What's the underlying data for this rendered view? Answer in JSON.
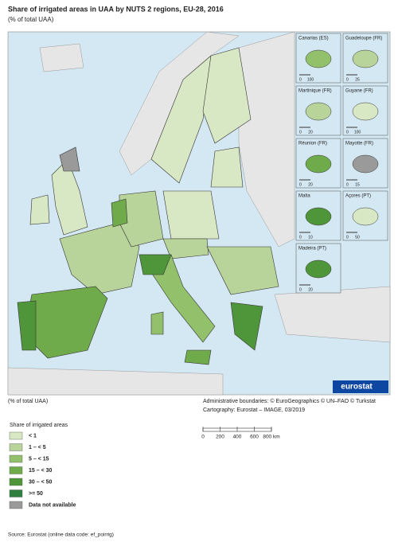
{
  "header": {
    "title": "Share of irrigated areas in UAA by NUTS 2 regions, EU-28, 2016",
    "subtitle": "(% of total UAA)"
  },
  "insets": [
    {
      "label": "Canarias (ES)",
      "scale": [
        "0",
        "100"
      ]
    },
    {
      "label": "Guadeloupe (FR)",
      "scale": [
        "0",
        "25"
      ]
    },
    {
      "label": "Martinique (FR)",
      "scale": [
        "0",
        "20"
      ]
    },
    {
      "label": "Guyane (FR)",
      "scale": [
        "0",
        "100"
      ]
    },
    {
      "label": "Réunion (FR)",
      "scale": [
        "0",
        "20"
      ]
    },
    {
      "label": "Mayotte (FR)",
      "scale": [
        "0",
        "15"
      ]
    },
    {
      "label": "Malta",
      "scale": [
        "0",
        "10"
      ]
    },
    {
      "label": "Açores (PT)",
      "scale": [
        "0",
        "50"
      ]
    },
    {
      "label": "Madeira (PT)",
      "scale": [
        "0",
        "20"
      ]
    }
  ],
  "logo": "eurostat",
  "notes": {
    "unit": "(% of total UAA)",
    "boundaries": "Administrative boundaries: © EuroGeographics © UN–FAO © Turkstat",
    "cartography": "Cartography: Eurostat – IMAGE, 03/2019"
  },
  "scalebar": [
    "0",
    "200",
    "400",
    "600",
    "800 km"
  ],
  "legend": {
    "title": "Share of irrigated areas",
    "classes": [
      {
        "label": "< 1",
        "color": "#d9e8c4"
      },
      {
        "label": "1 – < 5",
        "color": "#b8d49a"
      },
      {
        "label": "5 – < 15",
        "color": "#92c06b"
      },
      {
        "label": "15 – < 30",
        "color": "#6fab4a"
      },
      {
        "label": "30 – < 50",
        "color": "#4f963a"
      },
      {
        "label": ">= 50",
        "color": "#2f7f3f"
      },
      {
        "label": "Data not available",
        "color": "#9a9a9a"
      }
    ]
  },
  "source": "Source: Eurostat (online data code: ef_poirrig)"
}
